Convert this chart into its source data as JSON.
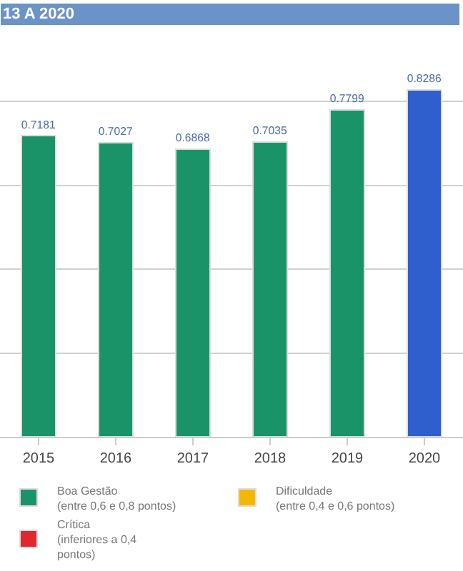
{
  "chart_data": {
    "type": "bar",
    "title": "13 A 2020",
    "categories": [
      "2015",
      "2016",
      "2017",
      "2018",
      "2019",
      "2020"
    ],
    "series": [
      {
        "name": "Boa Gestão\n(entre 0,6 e 0,8 pontos)",
        "color": "#1a9368",
        "values": [
          0.7181,
          0.7027,
          0.6868,
          0.7035,
          0.7799,
          null
        ]
      },
      {
        "name": "Dificuldade\n(entre 0,4 e 0,6 pontos)",
        "color": "#f5b800",
        "values": [
          null,
          null,
          null,
          null,
          null,
          null
        ]
      },
      {
        "name": "Crítica\n(inferiores a 0,4\npontos)",
        "color": "#e0282e",
        "values": [
          null,
          null,
          null,
          null,
          null,
          null
        ]
      },
      {
        "color": "#2f5fcc",
        "values": [
          null,
          null,
          null,
          null,
          null,
          0.8286
        ]
      }
    ],
    "stacked": true,
    "data_labels": true,
    "grid": "y",
    "tick_labels": "x",
    "legend": "bottom"
  }
}
